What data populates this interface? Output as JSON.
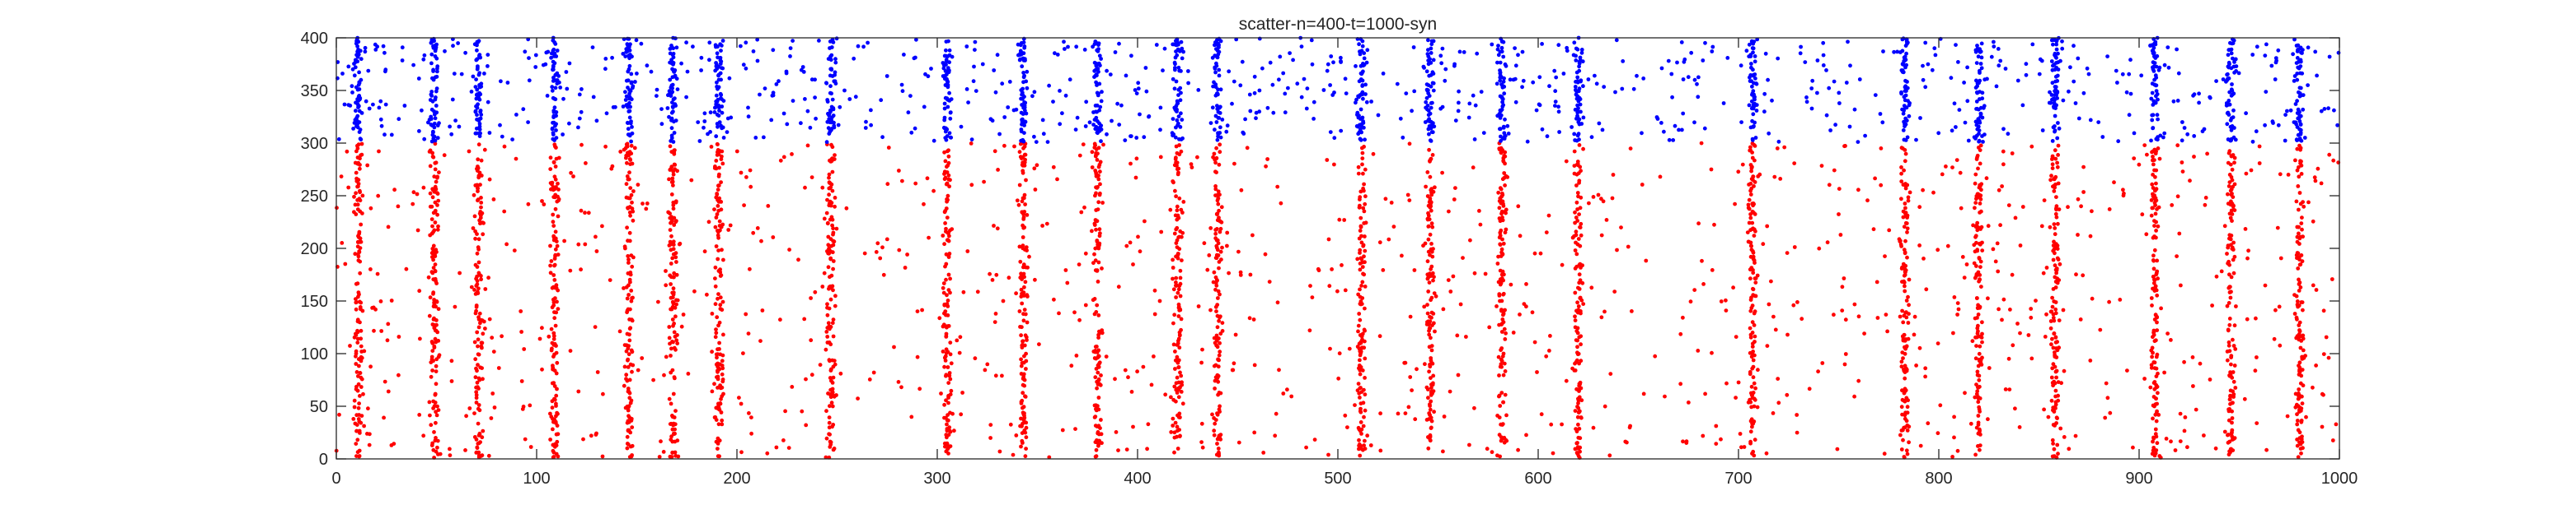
{
  "chart_data": {
    "type": "scatter",
    "title": "scatter-n=400-t=1000-syn",
    "xlabel": "",
    "ylabel": "",
    "xlim": [
      0,
      1000
    ],
    "ylim": [
      0,
      400
    ],
    "x_ticks": [
      0,
      100,
      200,
      300,
      400,
      500,
      600,
      700,
      800,
      900,
      1000
    ],
    "y_ticks": [
      0,
      50,
      100,
      150,
      200,
      250,
      300,
      350,
      400
    ],
    "grid": false,
    "legend": "none",
    "burst_times": [
      11,
      49,
      71,
      109,
      146,
      168,
      191,
      247,
      305,
      343,
      380,
      420,
      440,
      512,
      546,
      582,
      620,
      707,
      783,
      820,
      858,
      908,
      946,
      980
    ],
    "series": [
      {
        "id": "excitatory",
        "neuron_range": [
          1,
          300
        ],
        "color": "#ff0000",
        "marker": "dot"
      },
      {
        "id": "inhibitory",
        "neuron_range": [
          301,
          400
        ],
        "color": "#0000ff",
        "marker": "dot"
      }
    ]
  }
}
